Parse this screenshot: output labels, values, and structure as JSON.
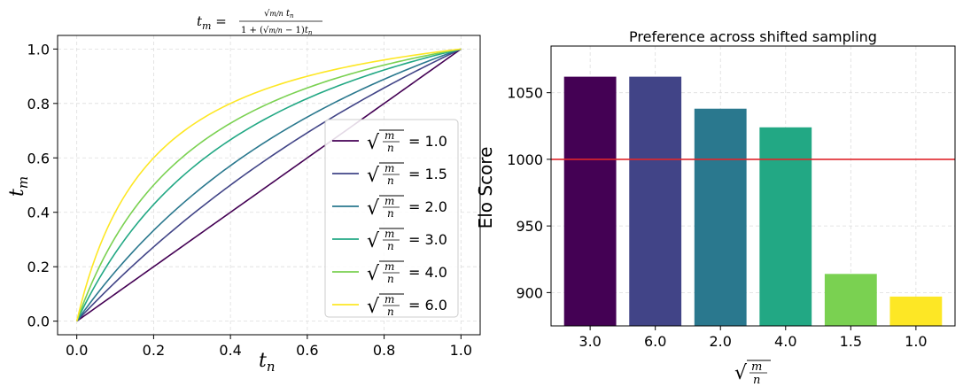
{
  "chart_data": [
    {
      "type": "line",
      "title": "t_m = √(m/n)·t_n / (1 + (√(m/n) − 1)·t_n)",
      "xlabel": "t_n",
      "ylabel": "t_m",
      "xlim": [
        -0.05,
        1.05
      ],
      "ylim": [
        -0.05,
        1.05
      ],
      "xticks": [
        "0.0",
        "0.2",
        "0.4",
        "0.6",
        "0.8",
        "1.0"
      ],
      "yticks": [
        "0.0",
        "0.2",
        "0.4",
        "0.6",
        "0.8",
        "1.0"
      ],
      "grid": true,
      "legend": "lower-right",
      "legend_prefix": "√(m/n)",
      "series": [
        {
          "name": "= 1.0",
          "shift": 1.0,
          "color": "#440154"
        },
        {
          "name": "= 1.5",
          "shift": 1.5,
          "color": "#414487"
        },
        {
          "name": "= 2.0",
          "shift": 2.0,
          "color": "#2a788e"
        },
        {
          "name": "= 3.0",
          "shift": 3.0,
          "color": "#22a884"
        },
        {
          "name": "= 4.0",
          "shift": 4.0,
          "color": "#7ad151"
        },
        {
          "name": "= 6.0",
          "shift": 6.0,
          "color": "#fde725"
        }
      ]
    },
    {
      "type": "bar",
      "title": "Preference across shifted sampling",
      "xlabel": "√(m/n)",
      "ylabel": "Elo Score",
      "categories": [
        "3.0",
        "6.0",
        "2.0",
        "4.0",
        "1.5",
        "1.0"
      ],
      "values": [
        1062,
        1062,
        1038,
        1024,
        914,
        897
      ],
      "colors": [
        "#440154",
        "#414487",
        "#2a788e",
        "#22a884",
        "#7ad151",
        "#fde725"
      ],
      "ylim": [
        875,
        1085
      ],
      "yticks": [
        "900",
        "950",
        "1000",
        "1050"
      ],
      "reference_line": {
        "value": 1000,
        "color": "#e0262b"
      },
      "grid": true
    }
  ]
}
